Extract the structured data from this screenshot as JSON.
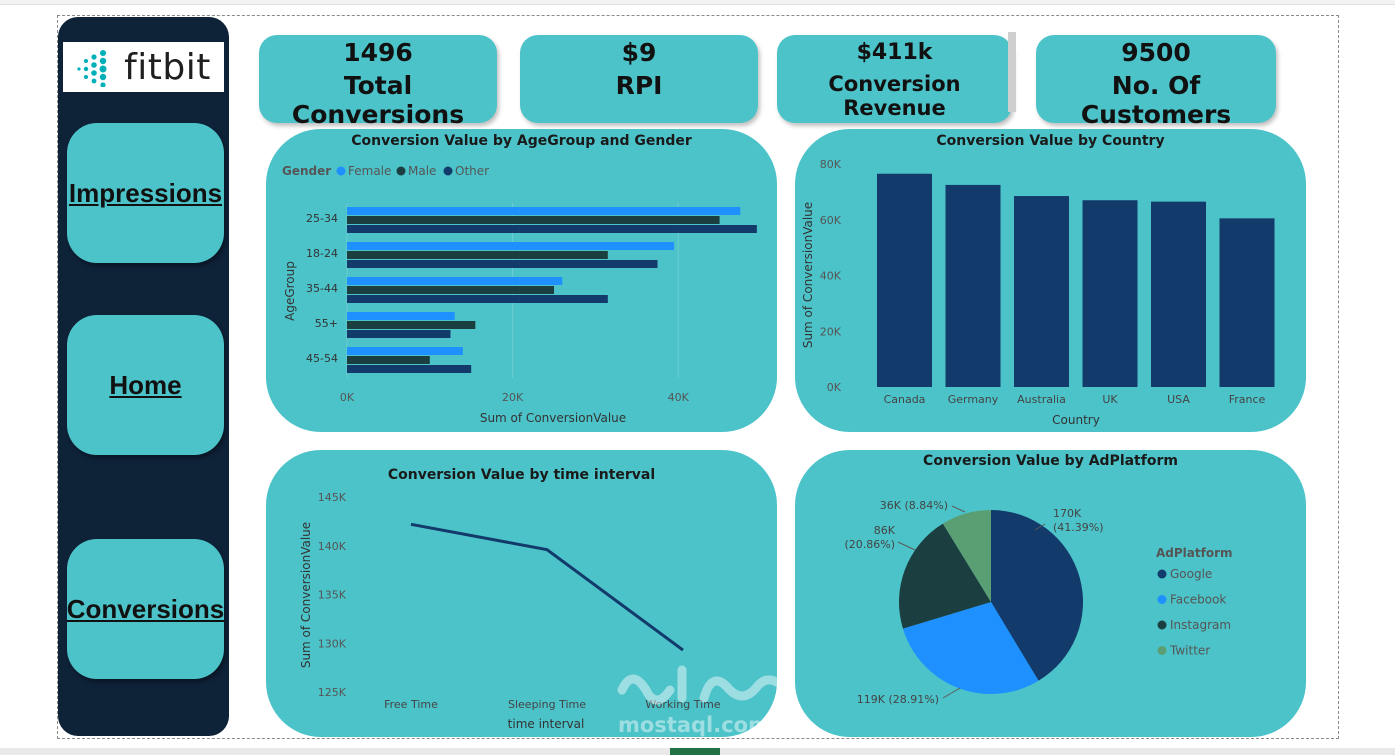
{
  "brand": {
    "logo_text": "fitbit"
  },
  "nav": [
    {
      "label": "Impressions"
    },
    {
      "label": "Home"
    },
    {
      "label": "Conversions"
    }
  ],
  "kpis": [
    {
      "value": "1496",
      "label": "Total Conversions"
    },
    {
      "value": "$9",
      "label": "RPI"
    },
    {
      "value": "$411k",
      "label": "Conversion Revenue"
    },
    {
      "value": "9500",
      "label": "No. Of Customers"
    }
  ],
  "colors": {
    "female": "#1e90ff",
    "male": "#1b3f40",
    "other": "#123a6b",
    "panel": "#4cc3c9",
    "sidebar": "#0e2238",
    "google": "#123a6b",
    "facebook": "#1e90ff",
    "instagram": "#1b3f40",
    "twitter": "#5a9e74"
  },
  "chart_data": [
    {
      "type": "bar",
      "orientation": "horizontal",
      "title": "Conversion Value by AgeGroup and Gender",
      "legend_title": "Gender",
      "categories": [
        "25-34",
        "18-24",
        "35-44",
        "55+",
        "45-54"
      ],
      "series": [
        {
          "name": "Female",
          "values": [
            47500,
            39500,
            26000,
            13000,
            14000
          ]
        },
        {
          "name": "Male",
          "values": [
            45000,
            31500,
            25000,
            15500,
            10000
          ]
        },
        {
          "name": "Other",
          "values": [
            49500,
            37500,
            31500,
            12500,
            15000
          ]
        }
      ],
      "xlabel": "Sum of ConversionValue",
      "ylabel": "AgeGroup",
      "xlim": [
        0,
        50000
      ],
      "xticks": [
        "0K",
        "20K",
        "40K"
      ],
      "xtick_values": [
        0,
        20000,
        40000
      ]
    },
    {
      "type": "bar",
      "title": "Conversion Value by Country",
      "categories": [
        "Canada",
        "Germany",
        "Australia",
        "UK",
        "USA",
        "France"
      ],
      "values": [
        76500,
        72500,
        68500,
        67000,
        66500,
        60500
      ],
      "xlabel": "Country",
      "ylabel": "Sum of ConversionValue",
      "ylim": [
        0,
        80000
      ],
      "yticks": [
        "0K",
        "20K",
        "40K",
        "60K",
        "80K"
      ],
      "ytick_values": [
        0,
        20000,
        40000,
        60000,
        80000
      ]
    },
    {
      "type": "line",
      "title": "Conversion Value by time interval",
      "x": [
        "Free Time",
        "Sleeping Time",
        "Working Time"
      ],
      "values": [
        142200,
        139600,
        129300
      ],
      "xlabel": "time interval",
      "ylabel": "Sum of ConversionValue",
      "ylim": [
        125000,
        145000
      ],
      "yticks": [
        "125K",
        "130K",
        "135K",
        "140K",
        "145K"
      ],
      "ytick_values": [
        125000,
        130000,
        135000,
        140000,
        145000
      ]
    },
    {
      "type": "pie",
      "title": "Conversion Value by AdPlatform",
      "legend_title": "AdPlatform",
      "slices": [
        {
          "name": "Google",
          "value": 170000,
          "label_line1": "170K",
          "label_line2": "(41.39%)"
        },
        {
          "name": "Facebook",
          "value": 119000,
          "label_line1": "119K (28.91%)",
          "label_line2": ""
        },
        {
          "name": "Instagram",
          "value": 86000,
          "label_line1": "86K",
          "label_line2": "(20.86%)"
        },
        {
          "name": "Twitter",
          "value": 36000,
          "label_line1": "36K (8.84%)",
          "label_line2": ""
        }
      ],
      "percents": [
        41.39,
        28.91,
        20.86,
        8.84
      ]
    }
  ],
  "watermark": {
    "text": "mostaql.com"
  }
}
